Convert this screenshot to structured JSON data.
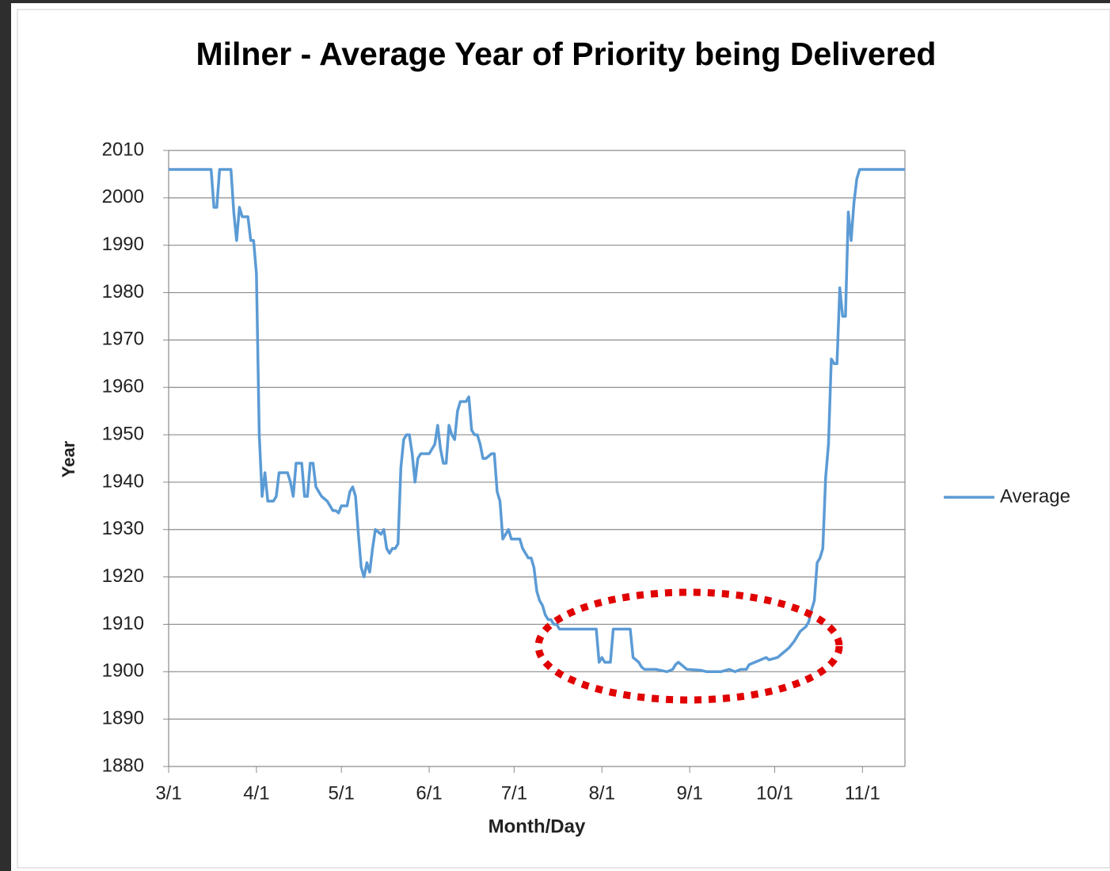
{
  "chart_data": {
    "type": "line",
    "title": "Milner - Average Year of Priority being Delivered",
    "xlabel": "Month/Day",
    "ylabel": "Year",
    "x": [
      0,
      15,
      16,
      17,
      18,
      22,
      23,
      24,
      25,
      26,
      28,
      29,
      30,
      31,
      32,
      33,
      34,
      35,
      37,
      38,
      39,
      42,
      43,
      44,
      45,
      47,
      48,
      49,
      50,
      51,
      52,
      53,
      54,
      56,
      58,
      59,
      60,
      61,
      63,
      64,
      65,
      66,
      67,
      68,
      69,
      70,
      71,
      72,
      73,
      75,
      76,
      77,
      78,
      79,
      80,
      81,
      82,
      83,
      84,
      85,
      86,
      87,
      88,
      89,
      92,
      93,
      94,
      95,
      96,
      97,
      98,
      99,
      100,
      101,
      102,
      103,
      104,
      105,
      106,
      107,
      108,
      109,
      110,
      111,
      112,
      114,
      115,
      116,
      117,
      118,
      119,
      120,
      121,
      124,
      125,
      126,
      127,
      128,
      129,
      130,
      131,
      132,
      133,
      134,
      135,
      136,
      137,
      138,
      150,
      151,
      152,
      153,
      154,
      156,
      157,
      162,
      163,
      164,
      166,
      167,
      168,
      172,
      176,
      178,
      179,
      180,
      181,
      182,
      183,
      188,
      190,
      195,
      198,
      200,
      202,
      204,
      205,
      207,
      209,
      211,
      212,
      215,
      217,
      219,
      221,
      223,
      225,
      226,
      227,
      228,
      229,
      230,
      231,
      232,
      233,
      234,
      235,
      236,
      237,
      238,
      239,
      240,
      241,
      242,
      243,
      244,
      260
    ],
    "series": [
      {
        "name": "Average",
        "color": "#5b9bd5",
        "values": [
          2006,
          2006,
          1998,
          1998,
          2006,
          2006,
          1997,
          1991,
          1998,
          1996,
          1996,
          1991,
          1991,
          1984,
          1950,
          1937,
          1942,
          1936,
          1936,
          1937,
          1942,
          1942,
          1940,
          1937,
          1944,
          1944,
          1937,
          1937,
          1944,
          1944,
          1939,
          1938,
          1937,
          1936,
          1934,
          1934,
          1933.5,
          1935,
          1935,
          1938,
          1939,
          1937,
          1929,
          1922,
          1920,
          1923,
          1921,
          1926,
          1930,
          1929,
          1930,
          1926,
          1925,
          1926,
          1926,
          1927,
          1943,
          1949,
          1950,
          1950,
          1946,
          1940,
          1945,
          1946,
          1946,
          1947,
          1948,
          1952,
          1947,
          1944,
          1944,
          1952,
          1950,
          1949,
          1955,
          1957,
          1957,
          1957,
          1958,
          1951,
          1950,
          1950,
          1948,
          1945,
          1945,
          1946,
          1946,
          1938,
          1936,
          1928,
          1929,
          1930,
          1928,
          1928,
          1926,
          1925,
          1924,
          1924,
          1922,
          1917,
          1915,
          1914,
          1912,
          1911,
          1911,
          1910,
          1910,
          1909,
          1909,
          1909,
          1902,
          1903,
          1902,
          1902,
          1909,
          1909,
          1909,
          1903,
          1902,
          1901,
          1900.5,
          1900.5,
          1900,
          1900.5,
          1901.5,
          1902,
          1901.5,
          1901,
          1900.5,
          1900.3,
          1900,
          1900,
          1900.5,
          1900,
          1900.5,
          1900.5,
          1901.5,
          1902,
          1902.5,
          1903,
          1902.5,
          1903,
          1904,
          1905,
          1906.5,
          1908.5,
          1909.5,
          1910.5,
          1913,
          1915,
          1923,
          1924,
          1926,
          1941,
          1948,
          1966,
          1965,
          1965,
          1981,
          1975,
          1975,
          1997,
          1991,
          1999,
          2004,
          2006,
          2006
        ]
      }
    ],
    "xlim": [
      0,
      260
    ],
    "xticks": [
      {
        "value": 0,
        "label": "3/1"
      },
      {
        "value": 31,
        "label": "4/1"
      },
      {
        "value": 61,
        "label": "5/1"
      },
      {
        "value": 92,
        "label": "6/1"
      },
      {
        "value": 122,
        "label": "7/1"
      },
      {
        "value": 153,
        "label": "8/1"
      },
      {
        "value": 184,
        "label": "9/1"
      },
      {
        "value": 214,
        "label": "10/1"
      },
      {
        "value": 245,
        "label": "11/1"
      }
    ],
    "ylim": [
      1880,
      2010
    ],
    "yticks": [
      1880,
      1890,
      1900,
      1910,
      1920,
      1930,
      1940,
      1950,
      1960,
      1970,
      1980,
      1990,
      2000,
      2010
    ],
    "grid": true,
    "legend": "right"
  }
}
